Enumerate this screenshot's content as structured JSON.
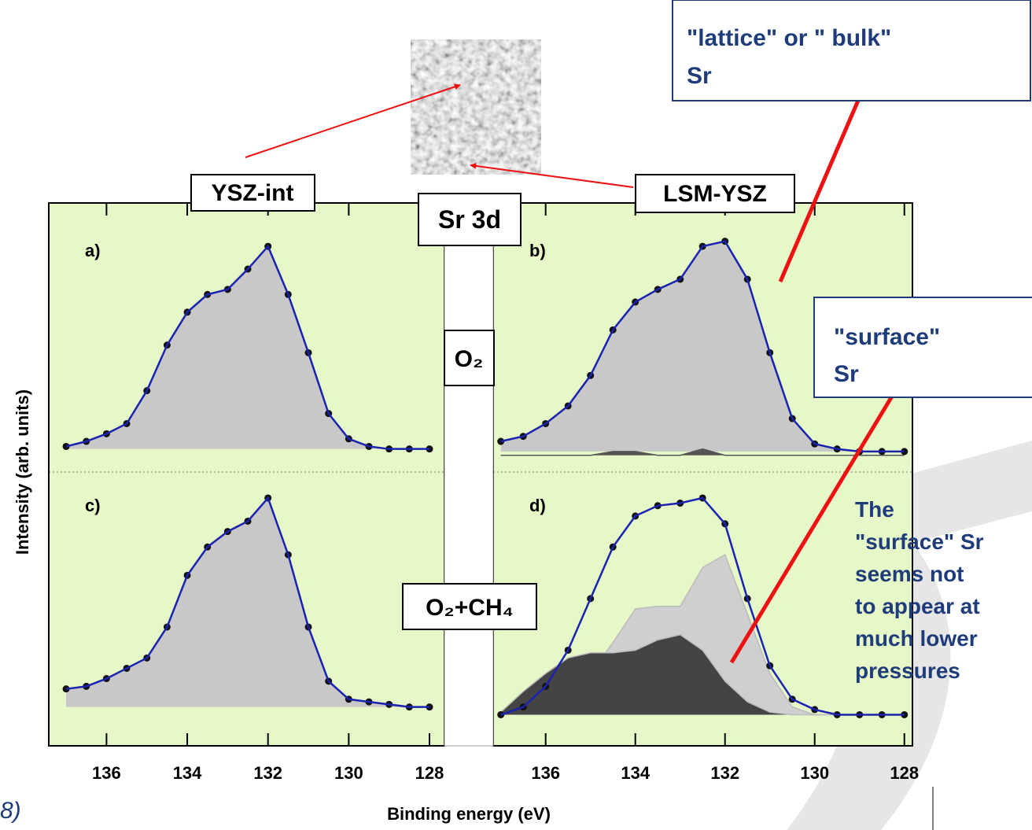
{
  "annotations": {
    "y_label": "Intensity (arb. units)",
    "x_label": "Binding energy (eV)",
    "left_sample": "YSZ-int",
    "right_sample": "LSM-YSZ",
    "core_level": "Sr 3d",
    "top_condition": "O₂",
    "bottom_condition": "O₂+CH₄",
    "lattice_box": [
      "\"lattice\" or \" bulk\"",
      "Sr"
    ],
    "surface_box": [
      "\"surface\"",
      "Sr"
    ],
    "note": [
      "The",
      "\"surface\" Sr",
      "seems not",
      "to appear at",
      "much lower",
      "pressures"
    ],
    "corner_text": "8)"
  },
  "chart_data": [
    {
      "type": "line",
      "label": "a)",
      "xlim": [
        137.43,
        127.63
      ],
      "ylim": [
        0,
        100
      ],
      "x": [
        137,
        136.5,
        136,
        135.5,
        135,
        134.5,
        134,
        133.5,
        133,
        132.5,
        132,
        131.5,
        131,
        130.5,
        130,
        129.5,
        129,
        128.5,
        128
      ],
      "series": [
        {
          "values": [
            7,
            9,
            12,
            16,
            29,
            47,
            60,
            67,
            69,
            77,
            86,
            67,
            44,
            20,
            10,
            7,
            6,
            6,
            6
          ],
          "color": "#1a22b0",
          "fill": "#c8c8c8",
          "markers": "#111111"
        }
      ]
    },
    {
      "type": "line",
      "label": "b)",
      "xlim": [
        137.17,
        127.82
      ],
      "ylim": [
        0,
        100
      ],
      "x": [
        137,
        136.5,
        136,
        135.5,
        135,
        134.5,
        134,
        133.5,
        133,
        132.5,
        132,
        131.5,
        131,
        130.5,
        130,
        129.5,
        129,
        128.5,
        128
      ],
      "series": [
        {
          "values": [
            9,
            11,
            16,
            23,
            35,
            53,
            64,
            69,
            73,
            86,
            88,
            73,
            44,
            18,
            8,
            6,
            5,
            5,
            5
          ],
          "color": "#1a22b0",
          "fill": "#c8c8c8",
          "markers": "#111111"
        },
        {
          "values": [
            3.5,
            3.5,
            3.5,
            3.5,
            3.5,
            5,
            5,
            3.5,
            3.5,
            6,
            3.5,
            3.5,
            3.5,
            3.5,
            3.5,
            3.5,
            3.5,
            3.5,
            3.5
          ],
          "color": "#555555",
          "fill": "#555555"
        }
      ]
    },
    {
      "type": "line",
      "label": "c)",
      "xlim": [
        137.43,
        127.63
      ],
      "ylim": [
        0,
        100
      ],
      "xticks": [
        136,
        134,
        132,
        130,
        128
      ],
      "x": [
        137,
        136.5,
        136,
        135.5,
        135,
        134.5,
        134,
        133.5,
        133,
        132.5,
        132,
        131.5,
        131,
        130.5,
        130,
        129.5,
        129,
        128.5,
        128
      ],
      "series": [
        {
          "values": [
            19,
            20,
            23,
            27,
            31,
            43,
            63,
            74,
            80,
            84,
            93,
            71,
            43,
            22,
            15,
            14,
            13,
            12,
            12
          ],
          "color": "#1a22b0",
          "fill": "#c8c8c8",
          "markers": "#111111"
        }
      ]
    },
    {
      "type": "line",
      "label": "d)",
      "xlim": [
        137.17,
        127.82
      ],
      "ylim": [
        0,
        100
      ],
      "xticks": [
        136,
        134,
        132,
        130,
        128
      ],
      "x": [
        137,
        136.5,
        136,
        135.5,
        135,
        134.5,
        134,
        133.5,
        133,
        132.5,
        132,
        131.5,
        131,
        130.5,
        130,
        129.5,
        129,
        128.5,
        128
      ],
      "series": [
        {
          "values": [
            9,
            10,
            12,
            17,
            25,
            37,
            50,
            51,
            51,
            66,
            71,
            48,
            25,
            12,
            9,
            9,
            9,
            9,
            9
          ],
          "color": "#bbbbbb",
          "fill": "#cfcfcf"
        },
        {
          "values": [
            10,
            18,
            25,
            31,
            33,
            33,
            34,
            38,
            40,
            34,
            22,
            14,
            10,
            9,
            9,
            9,
            9,
            9,
            9
          ],
          "color": "#bbbbbb",
          "fill": "#444444"
        },
        {
          "values": [
            9,
            12,
            20,
            34,
            54,
            74,
            86,
            90,
            91,
            93,
            83,
            54,
            28,
            15,
            11,
            9,
            9,
            9,
            9
          ],
          "color": "#1a22b0",
          "markers": "#111111"
        }
      ]
    }
  ]
}
